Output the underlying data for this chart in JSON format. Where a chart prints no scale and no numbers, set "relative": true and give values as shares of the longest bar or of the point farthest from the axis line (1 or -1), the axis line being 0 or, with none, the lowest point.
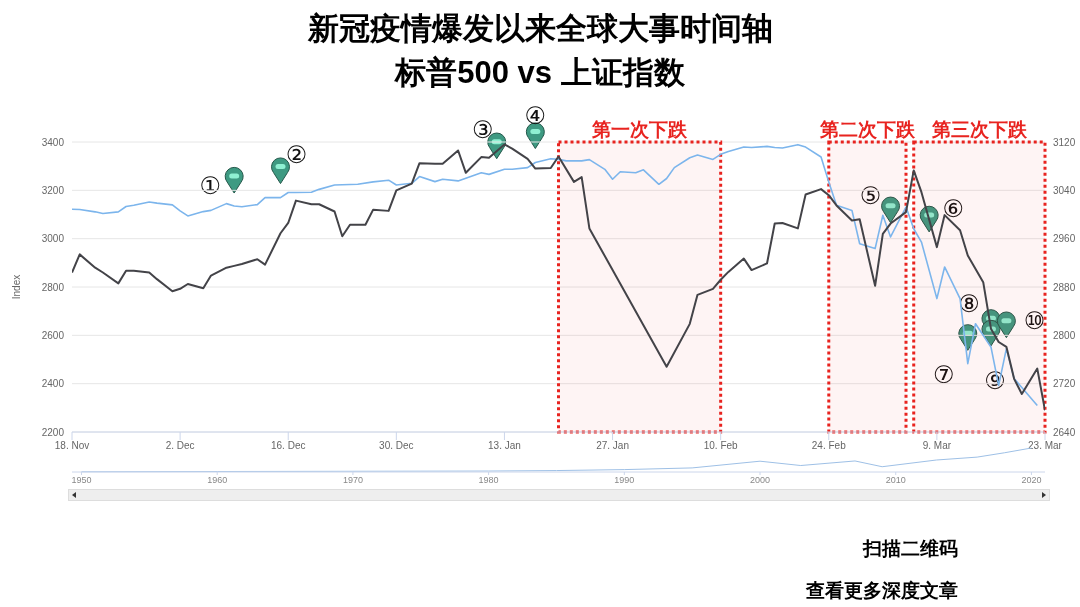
{
  "chart_data": [
    {
      "type": "line",
      "title": "新冠疫情爆发以来全球大事时间轴",
      "subtitle": "标普500 vs 上证指数",
      "ylabel": "Index",
      "xlim": [
        "2019-11-18",
        "2020-03-23"
      ],
      "xticks": [
        {
          "value": "2019-11-18",
          "label": "18. Nov"
        },
        {
          "value": "2019-12-02",
          "label": "2. Dec"
        },
        {
          "value": "2019-12-16",
          "label": "16. Dec"
        },
        {
          "value": "2019-12-30",
          "label": "30. Dec"
        },
        {
          "value": "2020-01-13",
          "label": "13. Jan"
        },
        {
          "value": "2020-01-27",
          "label": "27. Jan"
        },
        {
          "value": "2020-02-10",
          "label": "10. Feb"
        },
        {
          "value": "2020-02-24",
          "label": "24. Feb"
        },
        {
          "value": "2020-03-09",
          "label": "9. Mar"
        },
        {
          "value": "2020-03-23",
          "label": "23. Mar"
        }
      ],
      "ylim": [
        2200,
        3400
      ],
      "yticks": [
        2200,
        2400,
        2600,
        2800,
        3000,
        3200,
        3400
      ],
      "y2lim": [
        2640,
        3120
      ],
      "y2ticks": [
        2640,
        2720,
        2800,
        2880,
        2960,
        3040,
        3120
      ],
      "grid": "y",
      "series": [
        {
          "color": "#7cb5ec",
          "x": [
            "2019-11-18",
            "2019-11-19",
            "2019-11-21",
            "2019-11-22",
            "2019-11-24",
            "2019-11-25",
            "2019-11-26",
            "2019-11-28",
            "2019-11-29",
            "2019-12-01",
            "2019-12-02",
            "2019-12-03",
            "2019-12-05",
            "2019-12-06",
            "2019-12-08",
            "2019-12-09",
            "2019-12-10",
            "2019-12-12",
            "2019-12-13",
            "2019-12-15",
            "2019-12-16",
            "2019-12-17",
            "2019-12-19",
            "2019-12-20",
            "2019-12-22",
            "2019-12-23",
            "2019-12-25",
            "2019-12-27",
            "2019-12-29",
            "2019-12-30",
            "2020-01-01",
            "2020-01-02",
            "2020-01-04",
            "2020-01-05",
            "2020-01-07",
            "2020-01-10",
            "2020-01-11",
            "2020-01-13",
            "2020-01-14",
            "2020-01-16",
            "2020-01-17",
            "2020-01-19",
            "2020-01-20",
            "2020-01-21",
            "2020-01-23",
            "2020-01-24",
            "2020-01-26",
            "2020-01-27",
            "2020-01-28",
            "2020-01-30",
            "2020-01-31",
            "2020-02-02",
            "2020-02-03",
            "2020-02-04",
            "2020-02-06",
            "2020-02-07",
            "2020-02-09",
            "2020-02-10",
            "2020-02-11",
            "2020-02-13",
            "2020-02-14",
            "2020-02-16",
            "2020-02-17",
            "2020-02-18",
            "2020-02-20",
            "2020-02-21",
            "2020-02-23",
            "2020-02-24",
            "2020-02-25",
            "2020-02-27",
            "2020-02-28",
            "2020-03-01",
            "2020-03-02",
            "2020-03-03",
            "2020-03-05",
            "2020-03-06",
            "2020-03-07",
            "2020-03-09",
            "2020-03-10",
            "2020-03-12",
            "2020-03-13",
            "2020-03-14",
            "2020-03-16",
            "2020-03-17",
            "2020-03-18",
            "2020-03-19",
            "2020-03-22"
          ],
          "values": [
            3122,
            3121,
            3111,
            3104,
            3111,
            3133,
            3138,
            3152,
            3147,
            3140,
            3115,
            3094,
            3112,
            3117,
            3145,
            3135,
            3132,
            3141,
            3170,
            3170,
            3191,
            3191,
            3192,
            3204,
            3222,
            3223,
            3225,
            3235,
            3242,
            3222,
            3229,
            3257,
            3236,
            3246,
            3239,
            3273,
            3266,
            3287,
            3287,
            3294,
            3315,
            3331,
            3328,
            3322,
            3322,
            3327,
            3287,
            3246,
            3277,
            3273,
            3285,
            3225,
            3249,
            3294,
            3335,
            3346,
            3328,
            3349,
            3361,
            3379,
            3377,
            3382,
            3377,
            3375,
            3389,
            3379,
            3338,
            3234,
            3138,
            3117,
            2979,
            2959,
            3097,
            3007,
            3131,
            3041,
            2986,
            2752,
            2883,
            2752,
            2483,
            2648,
            2552,
            2393,
            2545,
            2421,
            2310
          ]
        },
        {
          "color": "#434348",
          "axis": "y2",
          "x": [
            "2019-11-18",
            "2019-11-19",
            "2019-11-21",
            "2019-11-22",
            "2019-11-24",
            "2019-11-25",
            "2019-11-26",
            "2019-11-28",
            "2019-11-29",
            "2019-12-01",
            "2019-12-02",
            "2019-12-03",
            "2019-12-05",
            "2019-12-06",
            "2019-12-08",
            "2019-12-09",
            "2019-12-10",
            "2019-12-12",
            "2019-12-13",
            "2019-12-15",
            "2019-12-16",
            "2019-12-17",
            "2019-12-19",
            "2019-12-20",
            "2019-12-22",
            "2019-12-23",
            "2019-12-24",
            "2019-12-26",
            "2019-12-27",
            "2019-12-29",
            "2019-12-30",
            "2020-01-01",
            "2020-01-02",
            "2020-01-04",
            "2020-01-05",
            "2020-01-07",
            "2020-01-08",
            "2020-01-10",
            "2020-01-11",
            "2020-01-13",
            "2020-01-14",
            "2020-01-16",
            "2020-01-17",
            "2020-01-19",
            "2020-01-20",
            "2020-01-22",
            "2020-01-23",
            "2020-01-24",
            "2020-02-03",
            "2020-02-06",
            "2020-02-07",
            "2020-02-09",
            "2020-02-10",
            "2020-02-11",
            "2020-02-13",
            "2020-02-14",
            "2020-02-16",
            "2020-02-17",
            "2020-02-18",
            "2020-02-20",
            "2020-02-21",
            "2020-02-23",
            "2020-02-24",
            "2020-02-25",
            "2020-02-27",
            "2020-02-28",
            "2020-03-01",
            "2020-03-02",
            "2020-03-03",
            "2020-03-05",
            "2020-03-06",
            "2020-03-07",
            "2020-03-09",
            "2020-03-10",
            "2020-03-12",
            "2020-03-13",
            "2020-03-15",
            "2020-03-16",
            "2020-03-17",
            "2020-03-18",
            "2020-03-19",
            "2020-03-20",
            "2020-03-22",
            "2020-03-23"
          ],
          "values": [
            2904,
            2934,
            2912,
            2904,
            2886,
            2907,
            2907,
            2904,
            2893,
            2873,
            2877,
            2885,
            2878,
            2899,
            2912,
            2915,
            2918,
            2926,
            2917,
            2969,
            2986,
            3023,
            3017,
            3017,
            3005,
            2964,
            2983,
            2983,
            3008,
            3006,
            3040,
            3051,
            3085,
            3084,
            3084,
            3106,
            3069,
            3095,
            3094,
            3116,
            3109,
            3092,
            3076,
            3077,
            3096,
            3054,
            3062,
            2977,
            2748,
            2819,
            2867,
            2877,
            2892,
            2905,
            2927,
            2908,
            2919,
            2985,
            2986,
            2977,
            3033,
            3042,
            3032,
            3015,
            2990,
            2992,
            2882,
            2968,
            2985,
            3004,
            3073,
            3037,
            2946,
            2999,
            2974,
            2932,
            2888,
            2811,
            2789,
            2781,
            2728,
            2703,
            2745,
            2676
          ]
        }
      ],
      "bands": [
        {
          "axis": "x",
          "from": "2020-01-20",
          "to": "2020-02-10",
          "label": "第一次下跌",
          "color": "#e8231f"
        },
        {
          "axis": "x",
          "from": "2020-02-24",
          "to": "2020-03-05",
          "label": "第二次下跌",
          "color": "#e8231f"
        },
        {
          "axis": "x",
          "from": "2020-03-06",
          "to": "2020-03-23",
          "label": "第三次下跌",
          "color": "#e8231f"
        }
      ],
      "annotations": [
        {
          "text": "①",
          "x": "2019-12-09",
          "y": 3135
        },
        {
          "text": "②",
          "x": "2019-12-15",
          "y": 3170
        },
        {
          "text": "③",
          "x": "2020-01-12",
          "y": 3331
        },
        {
          "text": "④",
          "x": "2020-01-17",
          "y": 3315
        },
        {
          "text": "⑤",
          "x": "2020-03-03",
          "y": 3066
        },
        {
          "text": "⑥",
          "x": "2020-03-08",
          "y": 3028
        },
        {
          "text": "⑦",
          "x": "2020-03-13",
          "y": 2538
        },
        {
          "text": "⑧",
          "x": "2020-03-16",
          "y": 2600
        },
        {
          "text": "⑨",
          "x": "2020-03-16",
          "y": 2556
        },
        {
          "text": "⑩",
          "x": "2020-03-18",
          "y": 2545
        },
        "扫描二维码",
        "查看更多深度文章"
      ]
    },
    {
      "type": "line",
      "relative": true,
      "xlim": [
        1949.3,
        2021
      ],
      "xticks": [
        1950,
        1960,
        1970,
        1980,
        1990,
        2000,
        2010,
        2020
      ],
      "series": [
        {
          "color": "#9ec0e6",
          "x": [
            1950,
            1960,
            1970,
            1980,
            1985,
            1990,
            1995,
            2000,
            2003,
            2007,
            2009,
            2013,
            2016,
            2018,
            2020
          ],
          "values": [
            0.01,
            0.02,
            0.03,
            0.04,
            0.06,
            0.1,
            0.17,
            0.45,
            0.27,
            0.46,
            0.22,
            0.5,
            0.62,
            0.8,
            1
          ]
        }
      ]
    }
  ]
}
